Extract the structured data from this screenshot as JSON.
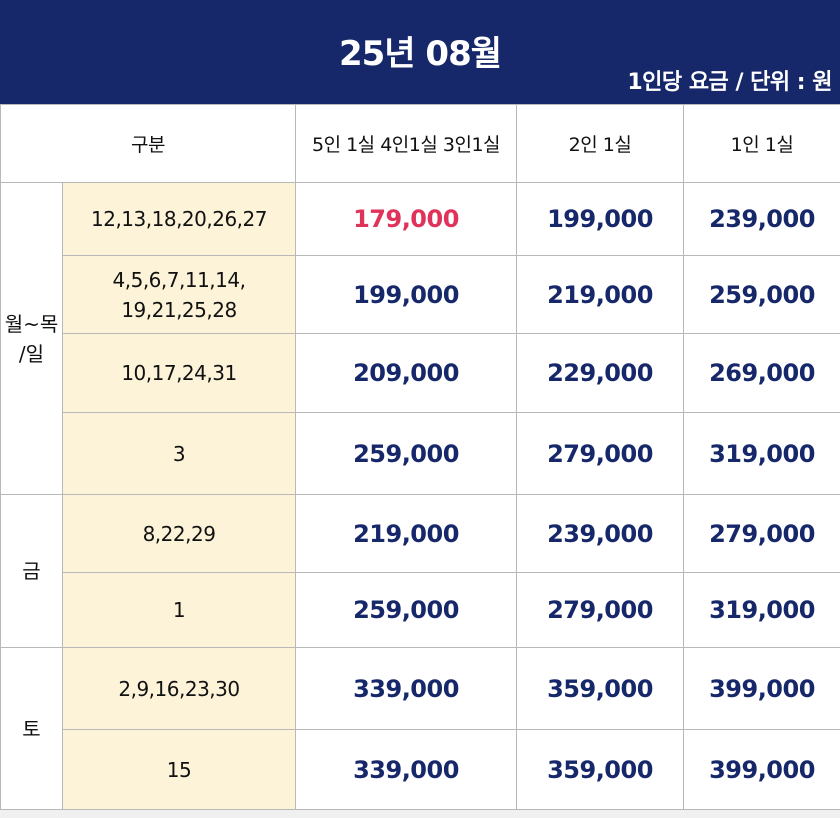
{
  "header": {
    "title": "25년 08월",
    "unit": "1인당 요금 / 단위 : 원"
  },
  "columns": {
    "category": "구분",
    "group_5_4_3": "5인 1실 4인1실 3인1실",
    "group_2": "2인 1실",
    "group_1": "1인 1실"
  },
  "colors": {
    "header_bg": "#16286a",
    "price_text": "#16286a",
    "highlight_price": "#e0335a",
    "date_cell_bg": "#fcf3d9"
  },
  "groups": [
    {
      "label_line1": "월~목",
      "label_line2": "/일",
      "rows": [
        {
          "dates_line1": "12,13,18,20,26,27",
          "dates_line2": "",
          "p543": "179,000",
          "p2": "199,000",
          "p1": "239,000",
          "highlight": true
        },
        {
          "dates_line1": "4,5,6,7,11,14,",
          "dates_line2": "19,21,25,28",
          "p543": "199,000",
          "p2": "219,000",
          "p1": "259,000"
        },
        {
          "dates_line1": "10,17,24,31",
          "dates_line2": "",
          "p543": "209,000",
          "p2": "229,000",
          "p1": "269,000"
        },
        {
          "dates_line1": "3",
          "dates_line2": "",
          "p543": "259,000",
          "p2": "279,000",
          "p1": "319,000"
        }
      ]
    },
    {
      "label_line1": "금",
      "label_line2": "",
      "rows": [
        {
          "dates_line1": "8,22,29",
          "dates_line2": "",
          "p543": "219,000",
          "p2": "239,000",
          "p1": "279,000"
        },
        {
          "dates_line1": "1",
          "dates_line2": "",
          "p543": "259,000",
          "p2": "279,000",
          "p1": "319,000"
        }
      ]
    },
    {
      "label_line1": "토",
      "label_line2": "",
      "rows": [
        {
          "dates_line1": "2,9,16,23,30",
          "dates_line2": "",
          "p543": "339,000",
          "p2": "359,000",
          "p1": "399,000"
        },
        {
          "dates_line1": "15",
          "dates_line2": "",
          "p543": "339,000",
          "p2": "359,000",
          "p1": "399,000"
        }
      ]
    }
  ]
}
